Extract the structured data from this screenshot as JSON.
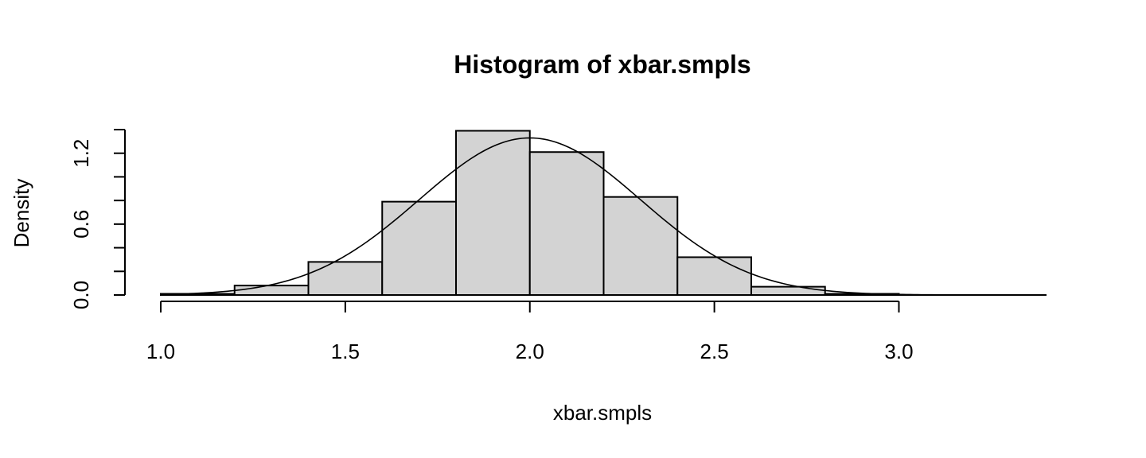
{
  "chart_data": {
    "type": "bar",
    "title": "Histogram of xbar.smpls",
    "xlabel": "xbar.smpls",
    "ylabel": "Density",
    "bins": [
      {
        "start": 1.0,
        "end": 1.2,
        "density": 0.01
      },
      {
        "start": 1.2,
        "end": 1.4,
        "density": 0.08
      },
      {
        "start": 1.4,
        "end": 1.6,
        "density": 0.28
      },
      {
        "start": 1.6,
        "end": 1.8,
        "density": 0.79
      },
      {
        "start": 1.8,
        "end": 2.0,
        "density": 1.39
      },
      {
        "start": 2.0,
        "end": 2.2,
        "density": 1.21
      },
      {
        "start": 2.2,
        "end": 2.4,
        "density": 0.83
      },
      {
        "start": 2.4,
        "end": 2.6,
        "density": 0.32
      },
      {
        "start": 2.6,
        "end": 2.8,
        "density": 0.07
      },
      {
        "start": 2.8,
        "end": 3.0,
        "density": 0.01
      }
    ],
    "density_curve": {
      "mean": 2.0,
      "sd": 0.3
    },
    "xlim": [
      1.0,
      3.4
    ],
    "ylim": [
      0.0,
      1.4
    ],
    "x_ticks": [
      1.0,
      1.5,
      2.0,
      2.5,
      3.0
    ],
    "x_tick_labels": [
      "1.0",
      "1.5",
      "2.0",
      "2.5",
      "3.0"
    ],
    "y_ticks": [
      0.0,
      0.2,
      0.4,
      0.6,
      0.8,
      1.0,
      1.2,
      1.4
    ],
    "y_tick_labels": [
      "0.0",
      "0.6",
      "1.2"
    ],
    "y_labeled_ticks": [
      0.0,
      0.6,
      1.2
    ],
    "grid": false,
    "legend": "none"
  }
}
